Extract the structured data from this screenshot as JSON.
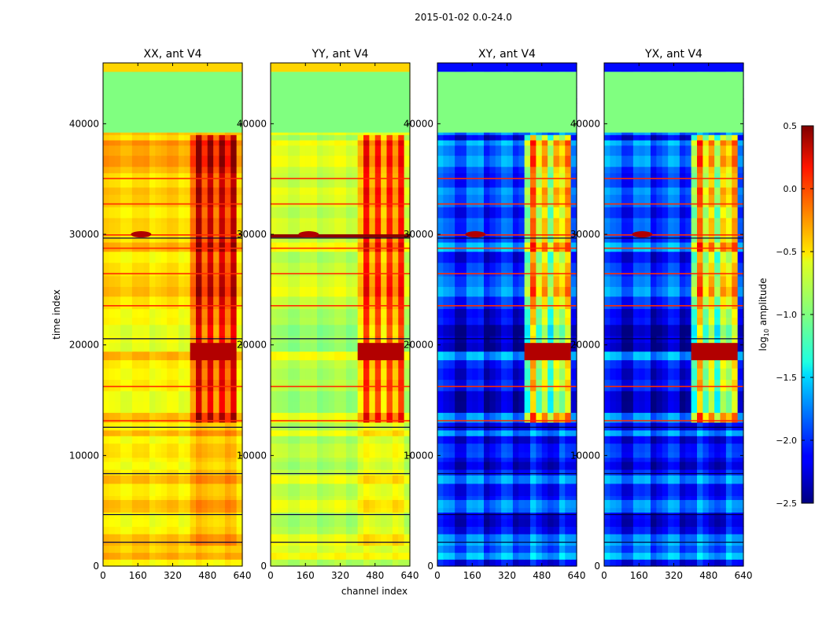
{
  "chart_data": {
    "type": "heatmap",
    "suptitle": "2015-01-02 0.0-24.0",
    "xlabel": "channel index",
    "ylabel": "time index",
    "x_range": [
      0,
      640
    ],
    "y_range": [
      0,
      45500
    ],
    "x_ticks": [
      "0",
      "160",
      "320",
      "480",
      "640"
    ],
    "x_tick_values": [
      0,
      160,
      320,
      480,
      640
    ],
    "y_ticks": [
      "0",
      "10000",
      "20000",
      "30000",
      "40000"
    ],
    "y_tick_values": [
      0,
      10000,
      20000,
      30000,
      40000
    ],
    "colorbar": {
      "label_main": "log",
      "label_sub": "10",
      "label_tail": " amplitude",
      "range": [
        -2.5,
        0.5
      ],
      "ticks": [
        "0.5",
        "0.0",
        "−0.5",
        "−1.0",
        "−1.5",
        "−2.0",
        "−2.5"
      ],
      "tick_values": [
        0.5,
        0.0,
        -0.5,
        -1.0,
        -1.5,
        -2.0,
        -2.5
      ]
    },
    "masked_block": {
      "t_start": 39200,
      "t_end": 44700,
      "value": -1.0
    },
    "hot_band_channels": [
      400,
      600
    ],
    "panels": [
      {
        "id": "xx",
        "title": "XX, ant V4",
        "kind": "parallel",
        "base": -0.55
      },
      {
        "id": "yy",
        "title": "YY, ant V4",
        "kind": "parallel",
        "base": -0.8
      },
      {
        "id": "xy",
        "title": "XY, ant V4",
        "kind": "cross",
        "base": -2.0
      },
      {
        "id": "yx",
        "title": "YX, ant V4",
        "kind": "cross",
        "base": -2.0
      }
    ]
  }
}
